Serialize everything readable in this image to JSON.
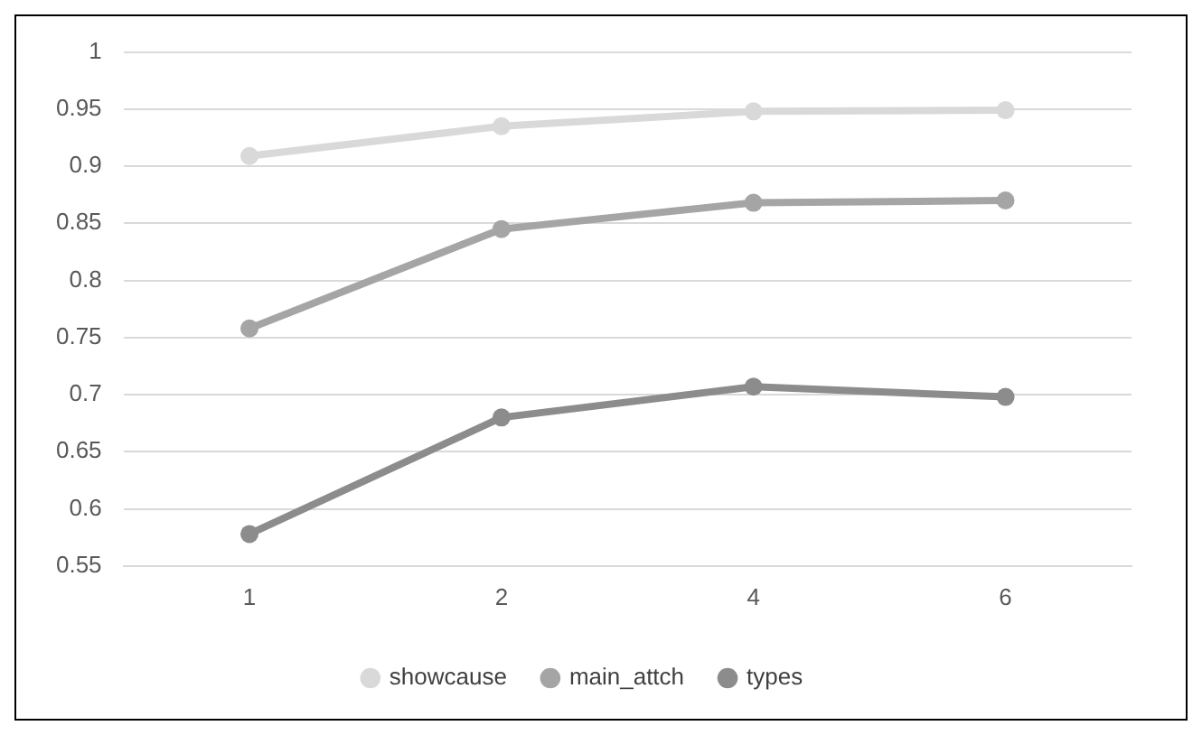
{
  "chart_data": {
    "type": "line",
    "categories": [
      "1",
      "2",
      "4",
      "6"
    ],
    "series": [
      {
        "name": "showcause",
        "color": "#d9d9d9",
        "values": [
          0.909,
          0.935,
          0.948,
          0.949
        ]
      },
      {
        "name": "main_attch",
        "color": "#a5a5a5",
        "values": [
          0.758,
          0.845,
          0.868,
          0.87
        ]
      },
      {
        "name": "types",
        "color": "#8c8c8c",
        "values": [
          0.578,
          0.68,
          0.707,
          0.698
        ]
      }
    ],
    "ylim": [
      0.55,
      1
    ],
    "yticks": [
      0.55,
      0.6,
      0.65,
      0.7,
      0.75,
      0.8,
      0.85,
      0.9,
      0.95,
      1
    ],
    "grid": "y",
    "legend": "bottom",
    "marker": "circle",
    "line_style": "solid"
  }
}
